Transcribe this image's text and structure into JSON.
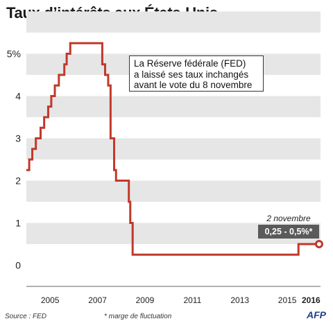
{
  "title": "Taux d’intérêts aux États-Unis",
  "annotation": [
    "La Réserve fédérale (FED)",
    "a laissé ses taux inchangés",
    "avant le vote du 8 novembre"
  ],
  "callout": {
    "date": "2 novembre",
    "value": "0,25 - 0,5%*"
  },
  "source": "Source : FED",
  "footnote": "* marge de fluctuation",
  "logo": "AFP",
  "colors": {
    "line": "#c0392b",
    "band": "#e6e6e6",
    "badge": "#5a5a5a"
  },
  "chart_data": {
    "type": "line",
    "title": "Taux d’intérêts aux États-Unis",
    "xlabel": "",
    "ylabel": "",
    "ylim": [
      -0.5,
      5.5
    ],
    "xlim": [
      2004.5,
      2016.9
    ],
    "y_ticks": [
      "0",
      "1",
      "2",
      "3",
      "4",
      "5%"
    ],
    "x_ticks": [
      "2005",
      "2007",
      "2009",
      "2011",
      "2013",
      "2015",
      "2016"
    ],
    "step": true,
    "series": [
      {
        "values": [
          [
            2004.5,
            2.25
          ],
          [
            2004.62,
            2.5
          ],
          [
            2004.75,
            2.75
          ],
          [
            2004.9,
            3.0
          ],
          [
            2005.1,
            3.25
          ],
          [
            2005.25,
            3.5
          ],
          [
            2005.42,
            3.75
          ],
          [
            2005.55,
            4.0
          ],
          [
            2005.7,
            4.25
          ],
          [
            2005.87,
            4.5
          ],
          [
            2006.1,
            4.75
          ],
          [
            2006.2,
            5.0
          ],
          [
            2006.35,
            5.25
          ],
          [
            2007.6,
            5.25
          ],
          [
            2007.7,
            4.75
          ],
          [
            2007.82,
            4.5
          ],
          [
            2007.95,
            4.25
          ],
          [
            2008.05,
            3.0
          ],
          [
            2008.15,
            3.0
          ],
          [
            2008.2,
            2.25
          ],
          [
            2008.28,
            2.0
          ],
          [
            2008.8,
            2.0
          ],
          [
            2008.82,
            1.5
          ],
          [
            2008.88,
            1.0
          ],
          [
            2008.98,
            0.25
          ],
          [
            2015.95,
            0.25
          ],
          [
            2015.97,
            0.5
          ],
          [
            2016.84,
            0.5
          ]
        ]
      }
    ]
  }
}
